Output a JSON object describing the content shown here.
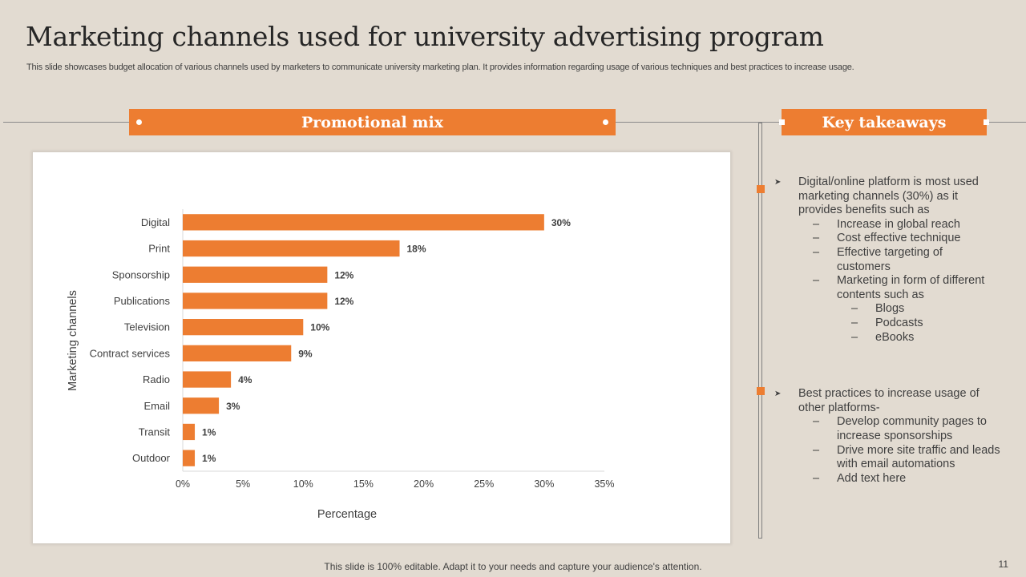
{
  "slide": {
    "title": "Marketing channels used for university advertising program",
    "subtitle": "This slide showcases budget allocation of various channels used by marketers to communicate  university marketing plan. It provides information regarding usage of various techniques and best practices to increase usage.",
    "footer": "This slide is 100% editable. Adapt it to your needs and capture your audience's attention.",
    "page_number": "11"
  },
  "colors": {
    "accent": "#ed7d31",
    "background": "#e2dbd1",
    "text": "#404040"
  },
  "promo_banner": {
    "label": "Promotional mix"
  },
  "takeaways_banner": {
    "label": "Key takeaways"
  },
  "takeaways": {
    "block1": {
      "lead": [
        "Digital/online platform is most used",
        "marketing channels (30%) as it",
        "provides benefits such as"
      ],
      "items": [
        [
          "Increase in global reach"
        ],
        [
          "Cost effective technique"
        ],
        [
          "Effective targeting of",
          "customers"
        ],
        [
          "Marketing  in form of different",
          "contents such as"
        ]
      ],
      "subitems": [
        "Blogs",
        "Podcasts",
        "eBooks"
      ]
    },
    "block2": {
      "lead": [
        "Best practices to increase usage of",
        "other platforms-"
      ],
      "items": [
        [
          "Develop community pages to",
          "increase sponsorships"
        ],
        [
          "Drive more site traffic and leads",
          "with email automations"
        ],
        [
          "Add text here"
        ]
      ]
    }
  },
  "chart_data": {
    "type": "bar",
    "orientation": "horizontal",
    "categories": [
      "Digital",
      "Print",
      "Sponsorship",
      "Publications",
      "Television",
      "Contract services",
      "Radio",
      "Email",
      "Transit",
      "Outdoor"
    ],
    "values": [
      30,
      18,
      12,
      12,
      10,
      9,
      4,
      3,
      1,
      1
    ],
    "data_labels": [
      "30%",
      "18%",
      "12%",
      "12%",
      "10%",
      "9%",
      "4%",
      "3%",
      "1%",
      "1%"
    ],
    "xlabel": "Percentage",
    "ylabel": "Marketing channels",
    "xlim": [
      0,
      35
    ],
    "xticks": [
      0,
      5,
      10,
      15,
      20,
      25,
      30,
      35
    ],
    "xtick_labels": [
      "0%",
      "5%",
      "10%",
      "15%",
      "20%",
      "25%",
      "30%",
      "35%"
    ],
    "grid": false,
    "legend": "none",
    "bar_color": "#ed7d31"
  }
}
